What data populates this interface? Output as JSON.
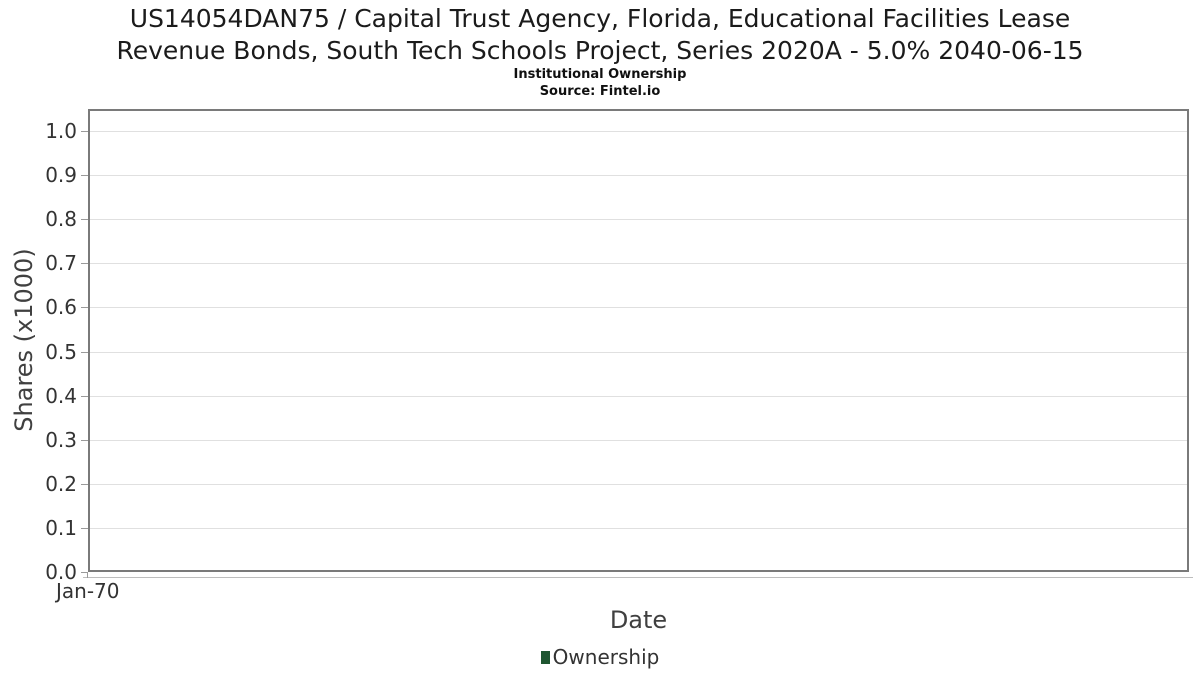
{
  "page": {
    "background": "#ffffff"
  },
  "chart_data": {
    "type": "line",
    "title": "US14054DAN75 / Capital Trust Agency, Florida, Educational Facilities Lease Revenue Bonds, South Tech Schools Project, Series 2020A - 5.0% 2040-06-15",
    "title_lines": [
      "US14054DAN75 / Capital Trust Agency, Florida, Educational Facilities Lease",
      "Revenue Bonds, South Tech Schools Project, Series 2020A - 5.0% 2040-06-15"
    ],
    "subtitle": "Institutional Ownership",
    "source": "Source: Fintel.io",
    "xlabel": "Date",
    "ylabel": "Shares (x1000)",
    "x_ticks": [
      "Jan-70"
    ],
    "y_ticks": [
      "0.0",
      "0.1",
      "0.2",
      "0.3",
      "0.4",
      "0.5",
      "0.6",
      "0.7",
      "0.8",
      "0.9",
      "1.0"
    ],
    "ylim": [
      0,
      1.05
    ],
    "grid": true,
    "legend_position": "bottom-center",
    "legend": [
      {
        "label": "Ownership",
        "color": "#1e5631"
      }
    ],
    "series": [
      {
        "name": "Ownership",
        "x": [],
        "values": []
      }
    ]
  }
}
